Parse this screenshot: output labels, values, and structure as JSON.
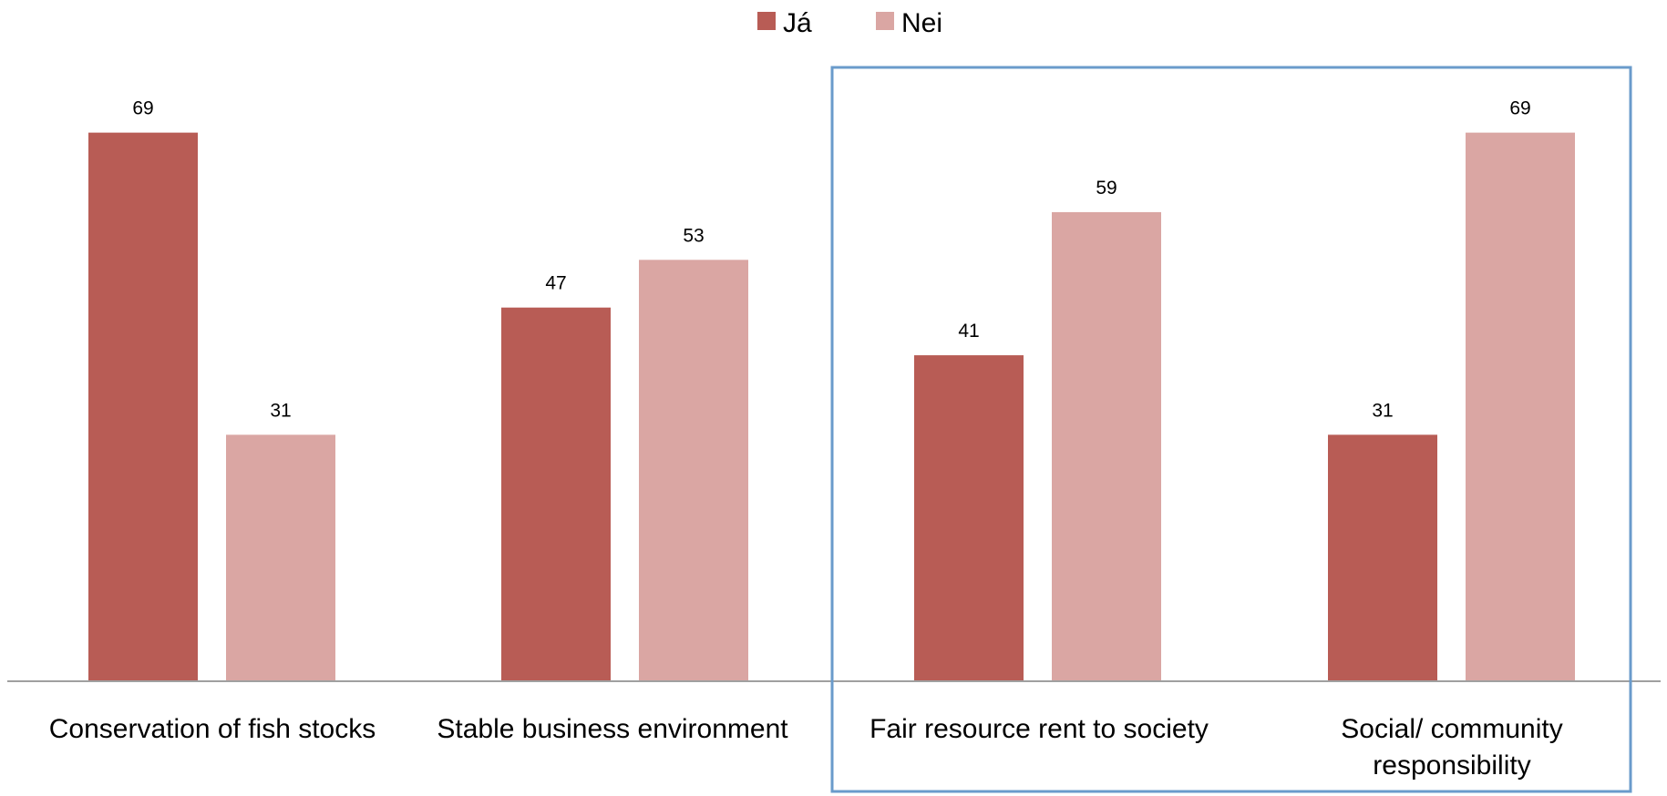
{
  "chart_data": {
    "type": "bar",
    "categories": [
      "Conservation of fish stocks",
      "Stable business environment",
      "Fair resource rent to society",
      "Social/ community responsibility"
    ],
    "series": [
      {
        "name": "Já",
        "values": [
          69,
          47,
          41,
          31
        ],
        "color": "#b85c55"
      },
      {
        "name": "Nei",
        "values": [
          31,
          53,
          59,
          69
        ],
        "color": "#daa6a3"
      }
    ],
    "ylim": [
      0,
      72
    ],
    "grid": false,
    "legend_position": "top-center",
    "highlight": {
      "categories": [
        "Fair resource rent to society",
        "Social/ community responsibility"
      ],
      "color": "#6a9bcb"
    },
    "title": "",
    "xlabel": "",
    "ylabel": ""
  }
}
